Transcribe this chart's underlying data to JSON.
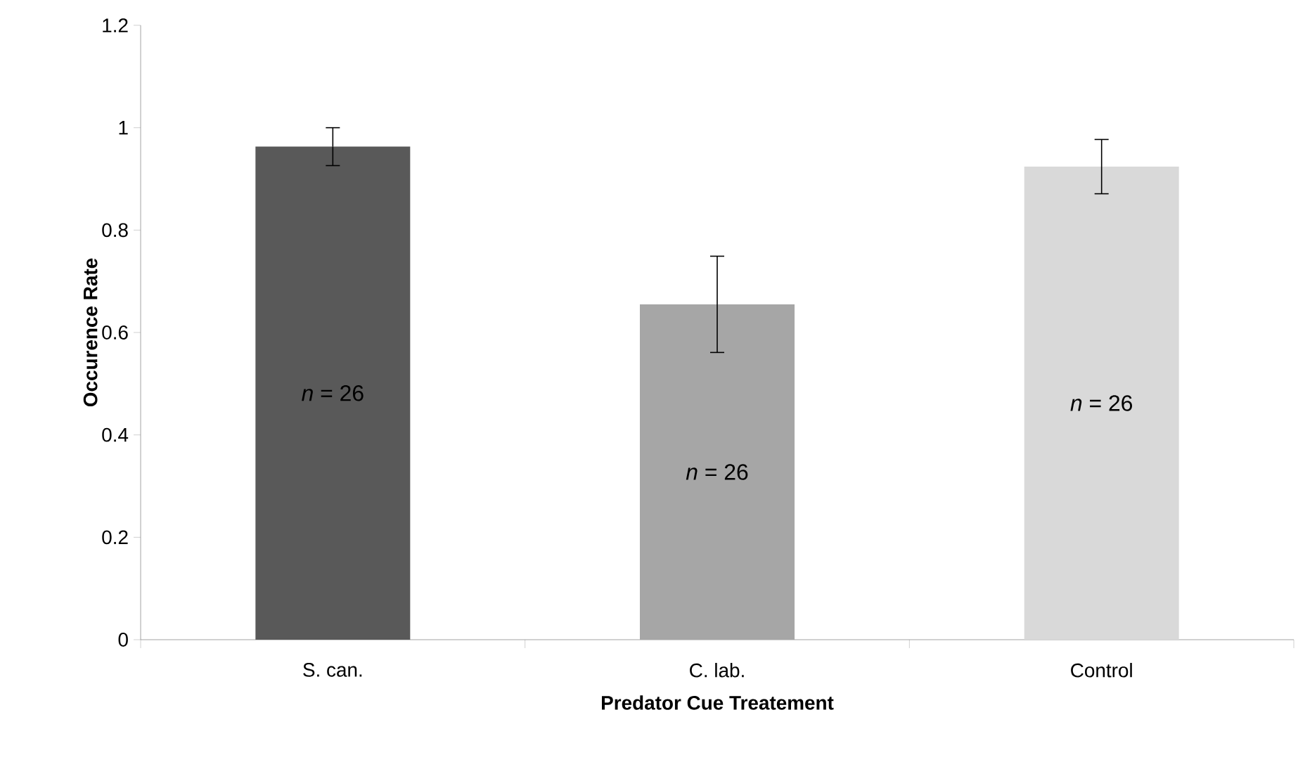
{
  "chart_data": {
    "type": "bar",
    "xlabel": "Predator Cue Treatement",
    "ylabel": "Occurence Rate",
    "categories": [
      "S. can.",
      "C. lab.",
      "Control"
    ],
    "values": [
      0.963,
      0.655,
      0.924
    ],
    "errors": [
      0.037,
      0.094,
      0.053
    ],
    "colors": [
      "#595959",
      "#a6a6a6",
      "#d9d9d9"
    ],
    "ylim": [
      0,
      1.2
    ],
    "yticks": [
      0,
      0.2,
      0.4,
      0.6,
      0.8,
      1,
      1.2
    ],
    "grid": false,
    "annotations": [
      "*n* = 26",
      "*n* = 26",
      "*n* = 26"
    ]
  }
}
